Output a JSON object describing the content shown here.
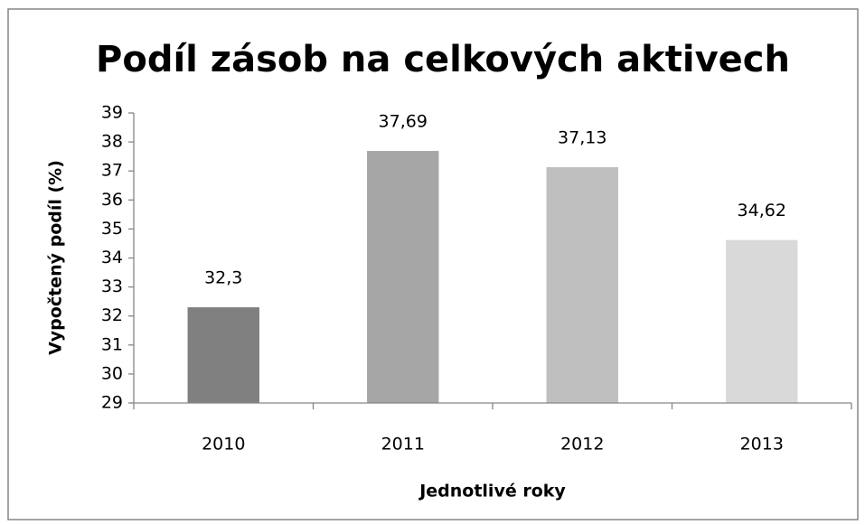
{
  "chart_data": {
    "type": "bar",
    "title": "Podíl zásob na celkových aktivech",
    "x_label": "Jednotlivé roky",
    "y_label": "Vypočtený podíl (%)",
    "categories": [
      "2010",
      "2011",
      "2012",
      "2013"
    ],
    "values": [
      32.3,
      37.69,
      37.13,
      34.62
    ],
    "value_labels": [
      "32,3",
      "37,69",
      "37,13",
      "34,62"
    ],
    "colors": [
      "#808080",
      "#a6a6a6",
      "#bfbfbf",
      "#d9d9d9"
    ],
    "ylim": [
      29,
      39
    ],
    "yticks": [
      29,
      30,
      31,
      32,
      33,
      34,
      35,
      36,
      37,
      38,
      39
    ],
    "grid": false
  }
}
